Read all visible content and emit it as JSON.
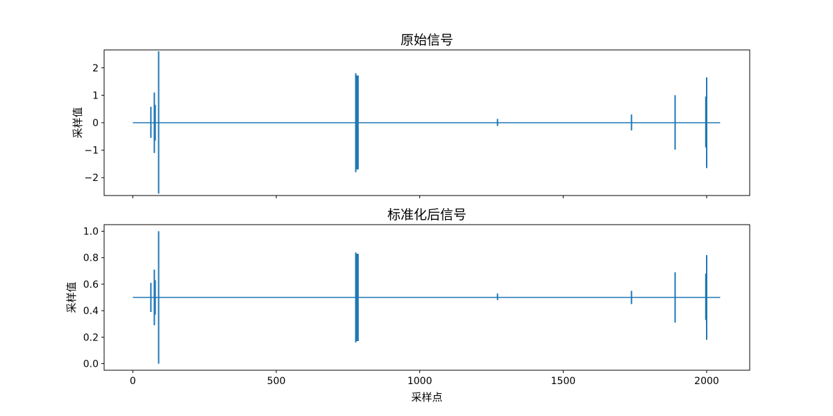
{
  "chart_data": [
    {
      "type": "line",
      "title": "原始信号",
      "ylabel": "采样值",
      "xlabel": "",
      "color": "#1f77b4",
      "xlim": [
        -100,
        2150
      ],
      "ylim": [
        -2.65,
        2.65
      ],
      "xticks": [
        0,
        500,
        1000,
        1500,
        2000
      ],
      "xticklabels": [],
      "yticks": [
        -2,
        -1,
        0,
        1,
        2
      ],
      "yticklabels": [
        "−2",
        "−1",
        "0",
        "1",
        "2"
      ],
      "baseline": {
        "x": [
          0,
          2047
        ],
        "y": 0
      },
      "spikes": [
        {
          "x": 63,
          "ymin": -0.55,
          "ymax": 0.58
        },
        {
          "x": 75,
          "ymin": -1.1,
          "ymax": 1.1
        },
        {
          "x": 78,
          "ymin": -0.65,
          "ymax": 0.65
        },
        {
          "x": 90,
          "ymin": -2.58,
          "ymax": 2.6
        },
        {
          "x": 777,
          "ymin": -1.8,
          "ymax": 1.8
        },
        {
          "x": 781,
          "ymin": -1.7,
          "ymax": 1.72
        },
        {
          "x": 785,
          "ymin": -1.7,
          "ymax": 1.72
        },
        {
          "x": 1271,
          "ymin": -0.12,
          "ymax": 0.14
        },
        {
          "x": 1738,
          "ymin": -0.28,
          "ymax": 0.3
        },
        {
          "x": 1890,
          "ymin": -0.98,
          "ymax": 1.0
        },
        {
          "x": 1997,
          "ymin": -0.9,
          "ymax": 0.95
        },
        {
          "x": 2000,
          "ymin": -1.65,
          "ymax": 1.65
        }
      ]
    },
    {
      "type": "line",
      "title": "标准化后信号",
      "ylabel": "采样值",
      "xlabel": "采样点",
      "color": "#1f77b4",
      "xlim": [
        -100,
        2150
      ],
      "ylim": [
        -0.05,
        1.05
      ],
      "xticks": [
        0,
        500,
        1000,
        1500,
        2000
      ],
      "xticklabels": [
        "0",
        "500",
        "1000",
        "1500",
        "2000"
      ],
      "yticks": [
        0.0,
        0.2,
        0.4,
        0.6,
        0.8,
        1.0
      ],
      "yticklabels": [
        "0.0",
        "0.2",
        "0.4",
        "0.6",
        "0.8",
        "1.0"
      ],
      "baseline": {
        "x": [
          0,
          2047
        ],
        "y": 0.5
      },
      "spikes": [
        {
          "x": 63,
          "ymin": 0.39,
          "ymax": 0.61
        },
        {
          "x": 75,
          "ymin": 0.29,
          "ymax": 0.71
        },
        {
          "x": 78,
          "ymin": 0.37,
          "ymax": 0.63
        },
        {
          "x": 90,
          "ymin": 0.0,
          "ymax": 1.0
        },
        {
          "x": 777,
          "ymin": 0.16,
          "ymax": 0.84
        },
        {
          "x": 781,
          "ymin": 0.17,
          "ymax": 0.83
        },
        {
          "x": 785,
          "ymin": 0.17,
          "ymax": 0.83
        },
        {
          "x": 1271,
          "ymin": 0.48,
          "ymax": 0.53
        },
        {
          "x": 1738,
          "ymin": 0.45,
          "ymax": 0.55
        },
        {
          "x": 1890,
          "ymin": 0.31,
          "ymax": 0.69
        },
        {
          "x": 1997,
          "ymin": 0.33,
          "ymax": 0.68
        },
        {
          "x": 2000,
          "ymin": 0.18,
          "ymax": 0.82
        }
      ]
    }
  ]
}
